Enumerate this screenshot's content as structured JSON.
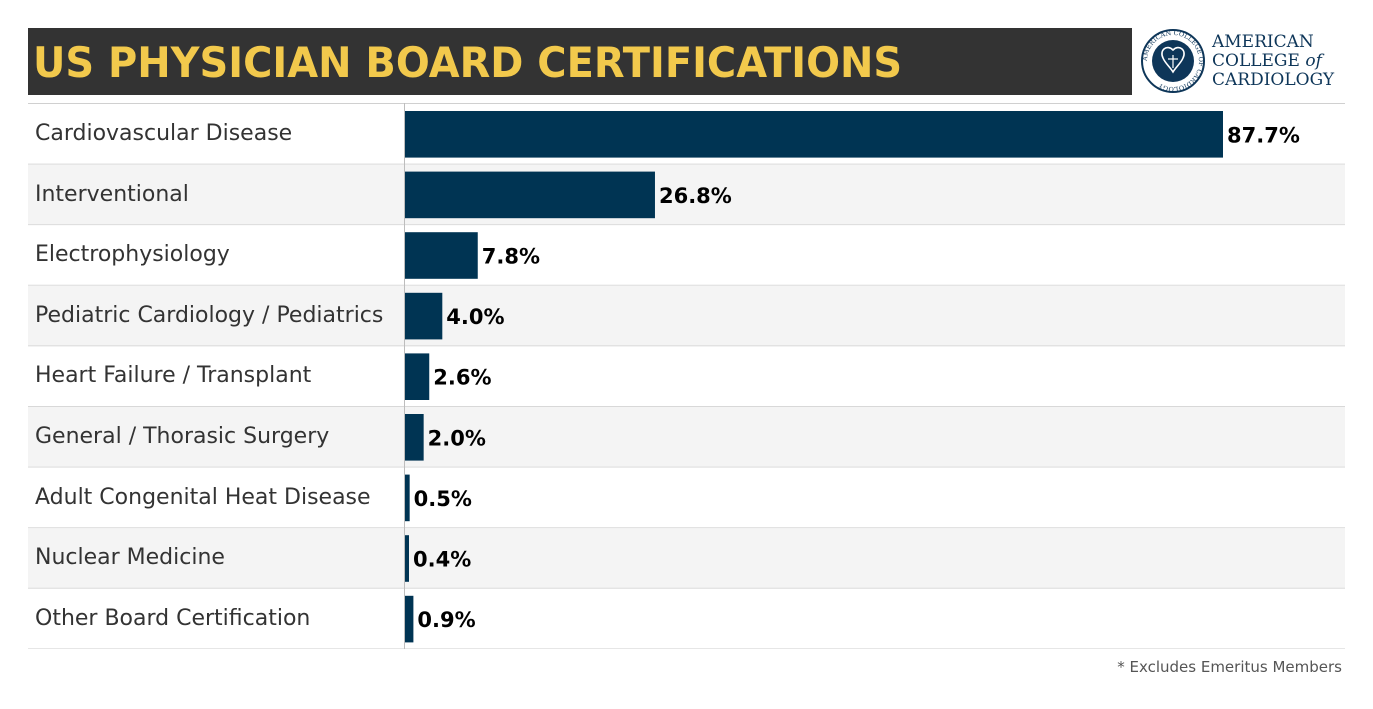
{
  "header": {
    "title": "US PHYSICIAN BOARD CERTIFICATIONS",
    "title_color": "#f2c94c",
    "bar_color": "#333333"
  },
  "logo": {
    "line1": "AMERICAN",
    "line2": "COLLEGE",
    "line2_suffix": "of",
    "line3": "CARDIOLOGY",
    "seal_text": "AMERICAN COLLEGE OF CARDIOLOGY",
    "color": "#0e3659"
  },
  "chart_data": {
    "type": "bar",
    "orientation": "horizontal",
    "categories": [
      "Cardiovascular Disease",
      "Interventional",
      "Electrophysiology",
      "Pediatric Cardiology / Pediatrics",
      "Heart Failure / Transplant",
      "General / Thorasic Surgery",
      "Adult Congenital Heat Disease",
      "Nuclear Medicine",
      "Other Board Certification"
    ],
    "values": [
      87.7,
      26.8,
      7.8,
      4.0,
      2.6,
      2.0,
      0.5,
      0.4,
      0.9
    ],
    "data_labels": [
      "87.7%",
      "26.8%",
      "7.8%",
      "4.0%",
      "2.6%",
      "2.0%",
      "0.5%",
      "0.4%",
      "0.9%"
    ],
    "xlim": [
      0,
      100
    ],
    "bar_color": "#003453",
    "row_band_colors": [
      "#ffffff",
      "#f4f4f4"
    ],
    "grid": false,
    "legend": "none"
  },
  "footnote": "* Excludes Emeritus Members"
}
